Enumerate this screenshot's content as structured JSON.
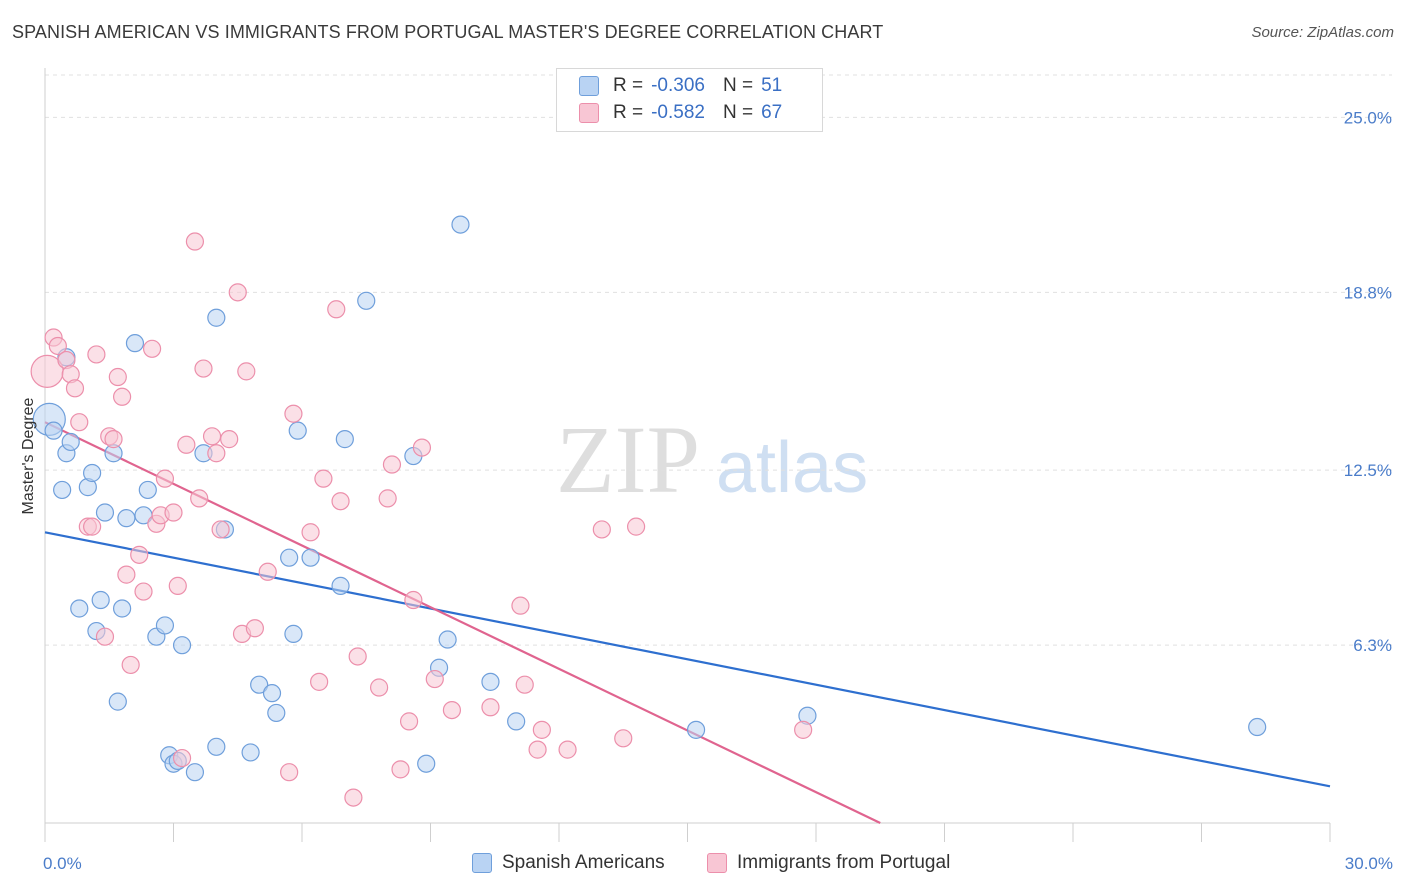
{
  "title": "SPANISH AMERICAN VS IMMIGRANTS FROM PORTUGAL MASTER'S DEGREE CORRELATION CHART",
  "source": "Source: ZipAtlas.com",
  "watermark": {
    "zip": "ZIP",
    "atlas": "atlas"
  },
  "legend_top": [
    {
      "r_label": "R =",
      "r_value": "-0.306",
      "n_label": "N =",
      "n_value": "51"
    },
    {
      "r_label": "R =",
      "r_value": "-0.582",
      "n_label": "N =",
      "n_value": "67"
    }
  ],
  "colors": {
    "blue_fill": "#b9d3f3",
    "blue_stroke": "#6f9fdb",
    "blue_line": "#2e6fcf",
    "pink_fill": "#f8c6d4",
    "pink_stroke": "#ec8fab",
    "pink_line": "#e0648f",
    "grid": "#e0e0e0",
    "tick": "#4a7cc9"
  },
  "chart_data": {
    "type": "scatter",
    "title": "SPANISH AMERICAN VS IMMIGRANTS FROM PORTUGAL MASTER'S DEGREE CORRELATION CHART",
    "ylabel": "Master's Degree",
    "xlabel": "",
    "xlim": [
      0,
      30
    ],
    "ylim": [
      0,
      26.5
    ],
    "x_tick_labels": [
      "0.0%",
      "30.0%"
    ],
    "y_ticks": [
      6.3,
      12.5,
      18.8,
      25.0
    ],
    "y_tick_labels": [
      "6.3%",
      "12.5%",
      "18.8%",
      "25.0%"
    ],
    "grid": "horizontal dashed",
    "legend_position": "bottom",
    "series": [
      {
        "name": "Spanish Americans",
        "color": "#6f9fdb",
        "regression": {
          "x": [
            0,
            30
          ],
          "y": [
            10.3,
            1.3
          ]
        },
        "points": [
          [
            0.1,
            14.3
          ],
          [
            0.2,
            13.9
          ],
          [
            0.4,
            11.8
          ],
          [
            0.5,
            13.1
          ],
          [
            0.6,
            13.5
          ],
          [
            0.5,
            16.5
          ],
          [
            0.8,
            7.6
          ],
          [
            1.0,
            11.9
          ],
          [
            1.1,
            12.4
          ],
          [
            1.2,
            6.8
          ],
          [
            1.3,
            7.9
          ],
          [
            1.4,
            11.0
          ],
          [
            1.6,
            13.1
          ],
          [
            1.7,
            4.3
          ],
          [
            1.8,
            7.6
          ],
          [
            1.9,
            10.8
          ],
          [
            2.1,
            17.0
          ],
          [
            2.3,
            10.9
          ],
          [
            2.4,
            11.8
          ],
          [
            2.6,
            6.6
          ],
          [
            2.8,
            7.0
          ],
          [
            2.9,
            2.4
          ],
          [
            3.0,
            2.1
          ],
          [
            3.2,
            6.3
          ],
          [
            3.1,
            2.2
          ],
          [
            3.5,
            1.8
          ],
          [
            3.7,
            13.1
          ],
          [
            4.0,
            2.7
          ],
          [
            4.0,
            17.9
          ],
          [
            4.2,
            10.4
          ],
          [
            4.8,
            2.5
          ],
          [
            5.0,
            4.9
          ],
          [
            5.3,
            4.6
          ],
          [
            5.4,
            3.9
          ],
          [
            5.7,
            9.4
          ],
          [
            5.8,
            6.7
          ],
          [
            5.9,
            13.9
          ],
          [
            6.2,
            9.4
          ],
          [
            6.9,
            8.4
          ],
          [
            7.0,
            13.6
          ],
          [
            7.5,
            18.5
          ],
          [
            8.6,
            13.0
          ],
          [
            8.9,
            2.1
          ],
          [
            9.2,
            5.5
          ],
          [
            9.4,
            6.5
          ],
          [
            9.7,
            21.2
          ],
          [
            10.4,
            5.0
          ],
          [
            11.0,
            3.6
          ],
          [
            15.2,
            3.3
          ],
          [
            17.8,
            3.8
          ],
          [
            28.3,
            3.4
          ]
        ]
      },
      {
        "name": "Immigrants from Portugal",
        "color": "#ec8fab",
        "regression": {
          "x": [
            0,
            19.5
          ],
          "y": [
            14.2,
            0
          ]
        },
        "points": [
          [
            0.05,
            16.0
          ],
          [
            0.2,
            17.2
          ],
          [
            0.3,
            16.9
          ],
          [
            0.5,
            16.4
          ],
          [
            0.6,
            15.9
          ],
          [
            0.7,
            15.4
          ],
          [
            0.8,
            14.2
          ],
          [
            1.0,
            10.5
          ],
          [
            1.1,
            10.5
          ],
          [
            1.2,
            16.6
          ],
          [
            1.4,
            6.6
          ],
          [
            1.5,
            13.7
          ],
          [
            1.6,
            13.6
          ],
          [
            1.7,
            15.8
          ],
          [
            1.8,
            15.1
          ],
          [
            1.9,
            8.8
          ],
          [
            2.0,
            5.6
          ],
          [
            2.2,
            9.5
          ],
          [
            2.3,
            8.2
          ],
          [
            2.5,
            16.8
          ],
          [
            2.6,
            10.6
          ],
          [
            2.7,
            10.9
          ],
          [
            2.8,
            12.2
          ],
          [
            3.0,
            11.0
          ],
          [
            3.1,
            8.4
          ],
          [
            3.2,
            2.3
          ],
          [
            3.3,
            13.4
          ],
          [
            3.5,
            20.6
          ],
          [
            3.6,
            11.5
          ],
          [
            3.7,
            16.1
          ],
          [
            3.9,
            13.7
          ],
          [
            4.0,
            13.1
          ],
          [
            4.1,
            10.4
          ],
          [
            4.3,
            13.6
          ],
          [
            4.5,
            18.8
          ],
          [
            4.6,
            6.7
          ],
          [
            4.7,
            16.0
          ],
          [
            4.9,
            6.9
          ],
          [
            5.2,
            8.9
          ],
          [
            5.7,
            1.8
          ],
          [
            5.8,
            14.5
          ],
          [
            6.2,
            10.3
          ],
          [
            6.4,
            5.0
          ],
          [
            6.5,
            12.2
          ],
          [
            6.8,
            18.2
          ],
          [
            6.9,
            11.4
          ],
          [
            7.2,
            0.9
          ],
          [
            7.3,
            5.9
          ],
          [
            7.8,
            4.8
          ],
          [
            8.0,
            11.5
          ],
          [
            8.1,
            12.7
          ],
          [
            8.3,
            1.9
          ],
          [
            8.5,
            3.6
          ],
          [
            8.6,
            7.9
          ],
          [
            8.8,
            13.3
          ],
          [
            9.1,
            5.1
          ],
          [
            9.5,
            4.0
          ],
          [
            10.4,
            4.1
          ],
          [
            11.1,
            7.7
          ],
          [
            11.2,
            4.9
          ],
          [
            11.6,
            3.3
          ],
          [
            11.5,
            2.6
          ],
          [
            12.2,
            2.6
          ],
          [
            13.0,
            10.4
          ],
          [
            13.5,
            3.0
          ],
          [
            13.8,
            10.5
          ],
          [
            17.7,
            3.3
          ]
        ]
      }
    ]
  },
  "legend_bottom": [
    "Spanish Americans",
    "Immigrants from Portugal"
  ]
}
